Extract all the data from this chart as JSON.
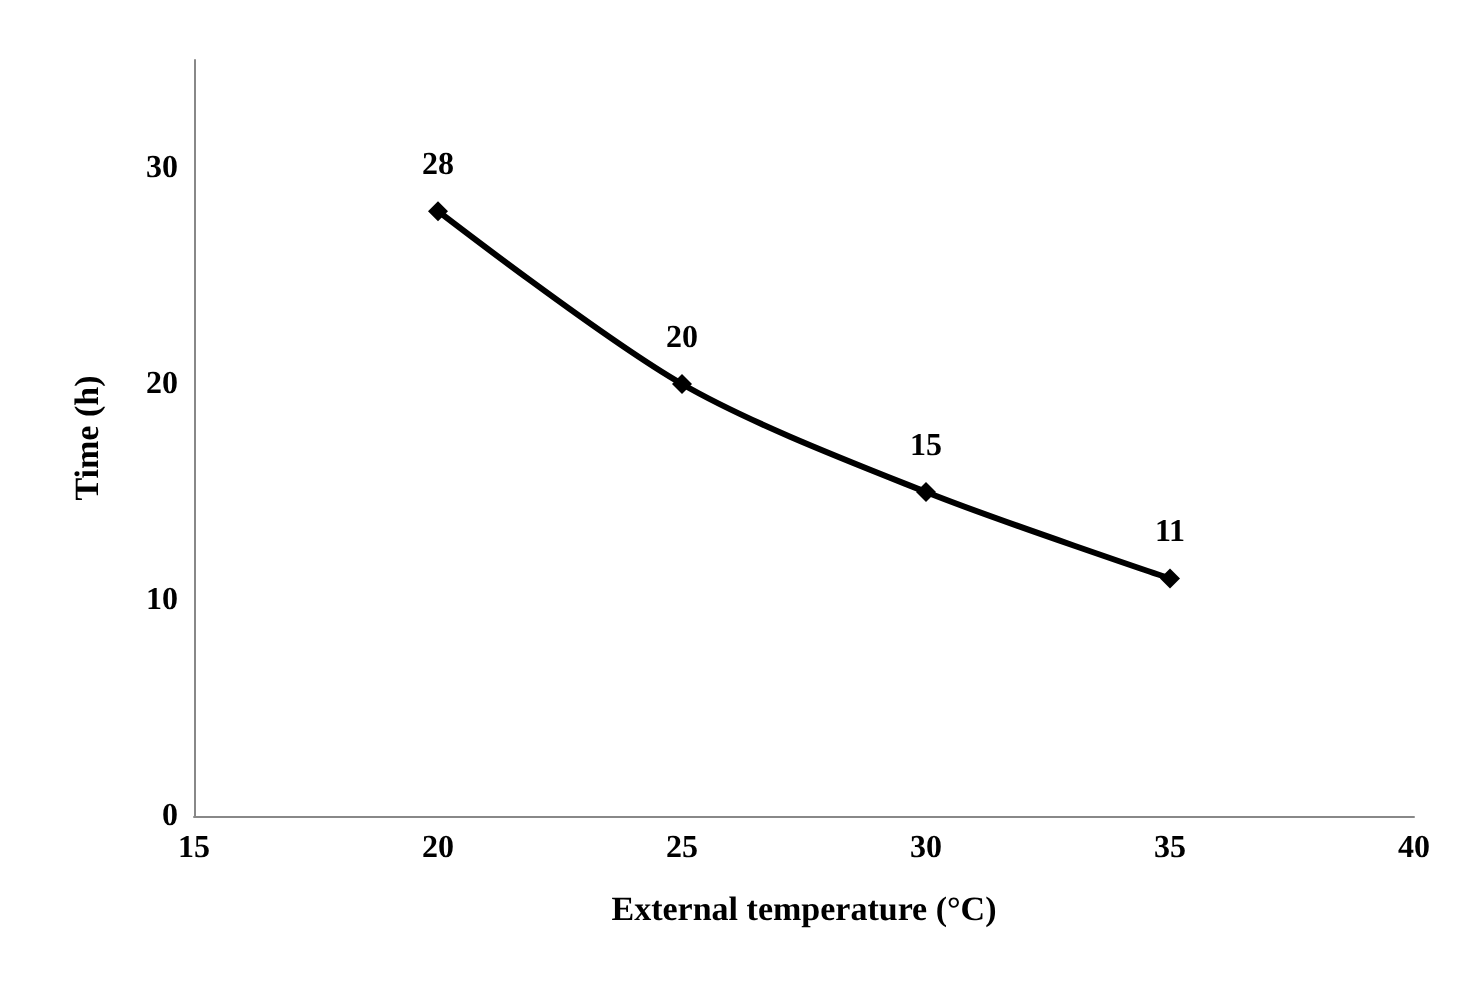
{
  "chart_data": {
    "type": "line",
    "xlabel": "External temperature (°C)",
    "ylabel": "Time (h)",
    "x": [
      20,
      25,
      30,
      35
    ],
    "series": [
      {
        "color": "#000000",
        "values": [
          28,
          20,
          15,
          11
        ]
      }
    ],
    "xlim": [
      15,
      40
    ],
    "xticks": [
      15,
      20,
      25,
      30,
      35,
      40
    ],
    "ylim": [
      0,
      35
    ],
    "yticks": [
      0,
      10,
      20,
      30
    ],
    "data_labels": true,
    "marker": "diamond",
    "line_style": "solid",
    "grid": false
  }
}
